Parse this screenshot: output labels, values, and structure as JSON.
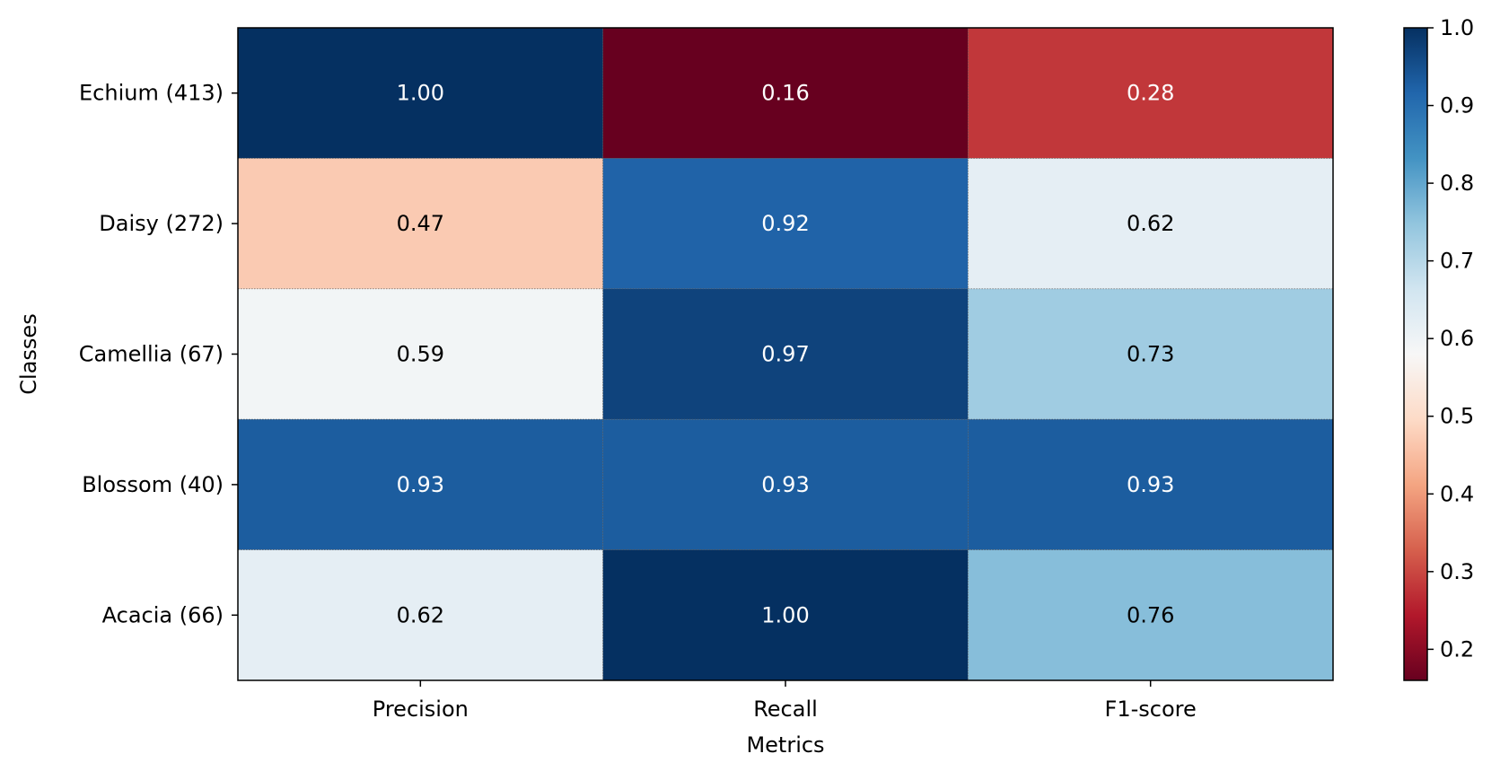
{
  "chart_data": {
    "type": "heatmap",
    "title": "",
    "xlabel": "Metrics",
    "ylabel": "Classes",
    "x_categories": [
      "Precision",
      "Recall",
      "F1-score"
    ],
    "y_categories": [
      "Echium (413)",
      "Daisy (272)",
      "Camellia (67)",
      "Blossom (40)",
      "Acacia (66)"
    ],
    "values": [
      [
        1.0,
        0.16,
        0.28
      ],
      [
        0.47,
        0.92,
        0.62
      ],
      [
        0.59,
        0.97,
        0.73
      ],
      [
        0.93,
        0.93,
        0.93
      ],
      [
        0.62,
        1.0,
        0.76
      ]
    ],
    "value_format": "0.00",
    "colormap": "RdBu",
    "colorbar": {
      "vmin": 0.16,
      "vmax": 1.0,
      "ticks": [
        0.2,
        0.3,
        0.4,
        0.5,
        0.6,
        0.7,
        0.8,
        0.9,
        1.0
      ],
      "tick_labels": [
        "0.2",
        "0.3",
        "0.4",
        "0.5",
        "0.6",
        "0.7",
        "0.8",
        "0.9",
        "1.0"
      ]
    },
    "grid": false
  }
}
